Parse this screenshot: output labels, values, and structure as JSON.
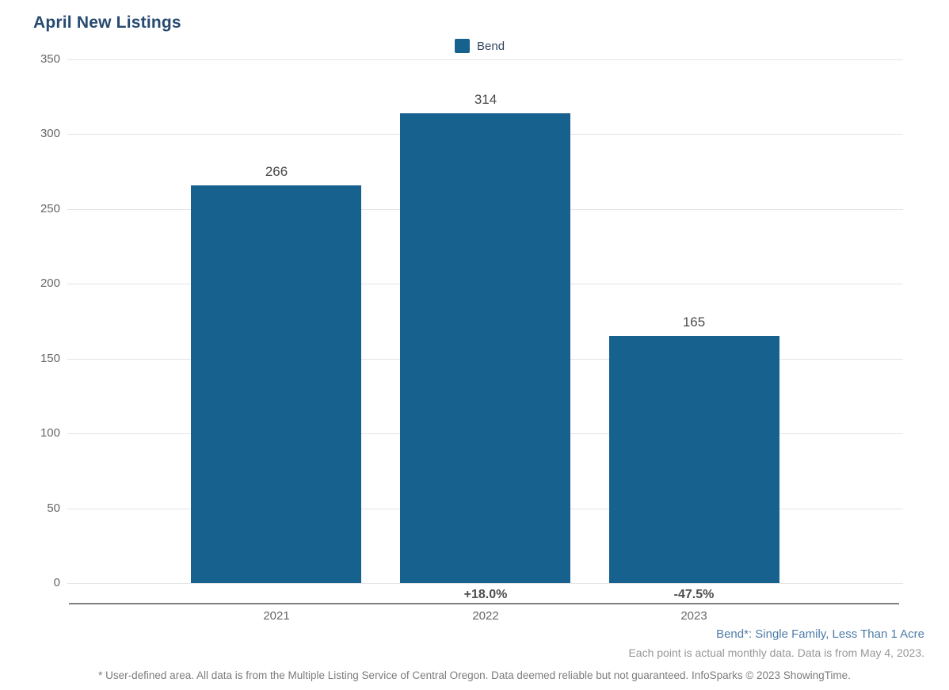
{
  "title": "April New Listings",
  "legend": {
    "label": "Bend",
    "swatch_color": "#17618f"
  },
  "colors": {
    "bar": "#17618f",
    "title_text": "#264a70",
    "gridline": "#e4e4e4",
    "axis_line": "#828282",
    "tick_text": "#666666",
    "value_label_text": "#4a4a4a",
    "pct_label_text": "#4d4d4d",
    "series_note_text": "#4e7ca7",
    "muted_note_text": "#979797",
    "disclaimer_text": "#7c7c7c"
  },
  "chart_data": {
    "type": "bar",
    "title": "April New Listings",
    "categories": [
      "2021",
      "2022",
      "2023"
    ],
    "series": [
      {
        "name": "Bend",
        "values": [
          266,
          314,
          165
        ]
      }
    ],
    "value_labels": [
      "266",
      "314",
      "165"
    ],
    "pct_change_labels": [
      "",
      "+18.0%",
      "-47.5%"
    ],
    "xlabel": "",
    "ylabel": "",
    "ylim": [
      0,
      350
    ],
    "yticks": [
      0,
      50,
      100,
      150,
      200,
      250,
      300,
      350
    ],
    "grid": "horizontal",
    "legend_position": "top-center"
  },
  "notes": {
    "series_definition": "Bend*: Single Family, Less Than 1 Acre",
    "data_note": "Each point is actual monthly data. Data is from May 4, 2023.",
    "disclaimer": "* User-defined area. All data is from the Multiple Listing Service of Central Oregon. Data deemed reliable but not guaranteed. InfoSparks © 2023 ShowingTime."
  }
}
